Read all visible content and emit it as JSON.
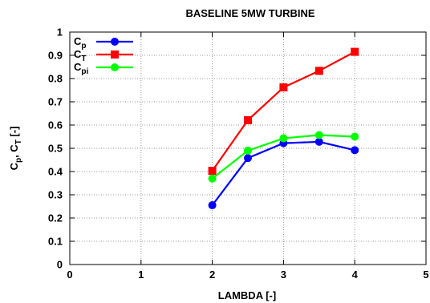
{
  "chart_data": {
    "type": "line",
    "title": "BASELINE 5MW TURBINE",
    "xlabel": "LAMBDA [-]",
    "ylabel": "C_p, C_T [-]",
    "ylabel_parts": {
      "c1": "C",
      "s1": "p",
      "mid": ", C",
      "s2": "T",
      "tail": " [-]"
    },
    "xlim": [
      0,
      5
    ],
    "ylim": [
      0,
      1
    ],
    "xticks": [
      0,
      1,
      2,
      3,
      4,
      5
    ],
    "yticks": [
      0,
      0.1,
      0.2,
      0.3,
      0.4,
      0.5,
      0.6,
      0.7,
      0.8,
      0.9,
      1
    ],
    "grid": true,
    "legend_position": "top-left",
    "series": [
      {
        "name": "Cp",
        "base": "C",
        "sub": "p",
        "color": "#0000ff",
        "marker": "circle",
        "x": [
          2,
          2.5,
          3,
          3.5,
          4
        ],
        "y": [
          0.255,
          0.458,
          0.522,
          0.528,
          0.492
        ]
      },
      {
        "name": "CT",
        "base": "C",
        "sub": "T",
        "color": "#ff0000",
        "marker": "square",
        "x": [
          2,
          2.5,
          3,
          3.5,
          4
        ],
        "y": [
          0.403,
          0.621,
          0.762,
          0.833,
          0.915
        ]
      },
      {
        "name": "Cpi",
        "base": "C",
        "sub": "pi",
        "color": "#00ff00",
        "marker": "circle",
        "x": [
          2,
          2.5,
          3,
          3.5,
          4
        ],
        "y": [
          0.37,
          0.49,
          0.543,
          0.557,
          0.55
        ]
      }
    ]
  }
}
